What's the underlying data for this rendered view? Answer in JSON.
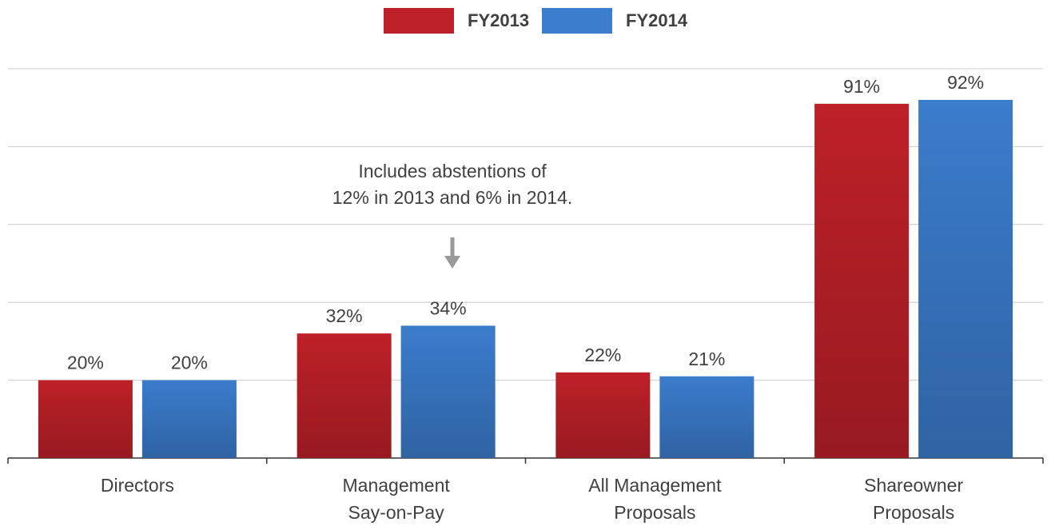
{
  "chart_data": {
    "type": "bar",
    "categories": [
      [
        "Directors"
      ],
      [
        "Management",
        "Say-on-Pay"
      ],
      [
        "All Management",
        "Proposals"
      ],
      [
        "Shareowner",
        "Proposals"
      ]
    ],
    "series": [
      {
        "name": "FY2013",
        "color": "#bd2028",
        "values": [
          20,
          32,
          22,
          91
        ],
        "value_labels": [
          "20%",
          "32%",
          "22%",
          "91%"
        ]
      },
      {
        "name": "FY2014",
        "color": "#3b7ccc",
        "values": [
          20,
          34,
          21,
          92
        ],
        "value_labels": [
          "20%",
          "34%",
          "21%",
          "92%"
        ]
      }
    ],
    "annotation": [
      "Includes abstentions of",
      "12% in 2013 and 6% in 2014."
    ],
    "ylim": [
      0,
      100
    ],
    "yticks": [
      0,
      20,
      40,
      60,
      80,
      100
    ],
    "grid": true,
    "legend": "top"
  }
}
